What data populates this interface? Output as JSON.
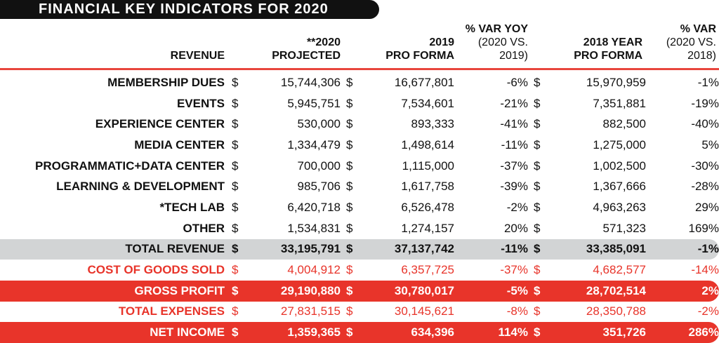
{
  "title": "FINANCIAL KEY INDICATORS FOR 2020",
  "headers": {
    "revenue": "REVENUE",
    "c2020_1": "**2020",
    "c2020_2": "PROJECTED",
    "c2019_1": "2019",
    "c2019_2": "PRO FORMA",
    "varyoy_1": "% VAR YOY",
    "varyoy_2": "(2020 VS.",
    "varyoy_3": "2019)",
    "c2018_1": "2018 YEAR",
    "c2018_2": "PRO FORMA",
    "var18_1": "% VAR",
    "var18_2": "(2020 VS.",
    "var18_3": "2018)"
  },
  "currency": "$",
  "rows": [
    {
      "label": "MEMBERSHIP DUES",
      "v2020": "15,744,306",
      "v2019": "16,677,801",
      "yoy": "-6%",
      "v2018": "15,970,959",
      "var18": "-1%"
    },
    {
      "label": "EVENTS",
      "v2020": "5,945,751",
      "v2019": "7,534,601",
      "yoy": "-21%",
      "v2018": "7,351,881",
      "var18": "-19%"
    },
    {
      "label": "EXPERIENCE CENTER",
      "v2020": "530,000",
      "v2019": "893,333",
      "yoy": "-41%",
      "v2018": "882,500",
      "var18": "-40%"
    },
    {
      "label": "MEDIA CENTER",
      "v2020": "1,334,479",
      "v2019": "1,498,614",
      "yoy": "-11%",
      "v2018": "1,275,000",
      "var18": "5%"
    },
    {
      "label": "PROGRAMMATIC+DATA CENTER",
      "v2020": "700,000",
      "v2019": "1,115,000",
      "yoy": "-37%",
      "v2018": "1,002,500",
      "var18": "-30%"
    },
    {
      "label": "LEARNING & DEVELOPMENT",
      "v2020": "985,706",
      "v2019": "1,617,758",
      "yoy": "-39%",
      "v2018": "1,367,666",
      "var18": "-28%"
    },
    {
      "label": "*TECH LAB",
      "v2020": "6,420,718",
      "v2019": "6,526,478",
      "yoy": "-2%",
      "v2018": "4,963,263",
      "var18": "29%"
    },
    {
      "label": "OTHER",
      "v2020": "1,534,831",
      "v2019": "1,274,157",
      "yoy": "20%",
      "v2018": "571,323",
      "var18": "169%"
    },
    {
      "label": "TOTAL REVENUE",
      "v2020": "33,195,791",
      "v2019": "37,137,742",
      "yoy": "-11%",
      "v2018": "33,385,091",
      "var18": "-1%",
      "style": "total"
    },
    {
      "label": "COST OF GOODS SOLD",
      "v2020": "4,004,912",
      "v2019": "6,357,725",
      "yoy": "-37%",
      "v2018": "4,682,577",
      "var18": "-14%",
      "style": "red"
    },
    {
      "label": "GROSS PROFIT",
      "v2020": "29,190,880",
      "v2019": "30,780,017",
      "yoy": "-5%",
      "v2018": "28,702,514",
      "var18": "2%",
      "style": "band"
    },
    {
      "label": "TOTAL EXPENSES",
      "v2020": "27,831,515",
      "v2019": "30,145,621",
      "yoy": "-8%",
      "v2018": "28,350,788",
      "var18": "-2%",
      "style": "red"
    },
    {
      "label": "NET INCOME",
      "v2020": "1,359,365",
      "v2019": "634,396",
      "yoy": "114%",
      "v2018": "351,726",
      "var18": "286%",
      "style": "band"
    }
  ],
  "colors": {
    "accent": "#e8342a",
    "total_band": "#d2d4d5",
    "title_bg": "#111111"
  }
}
